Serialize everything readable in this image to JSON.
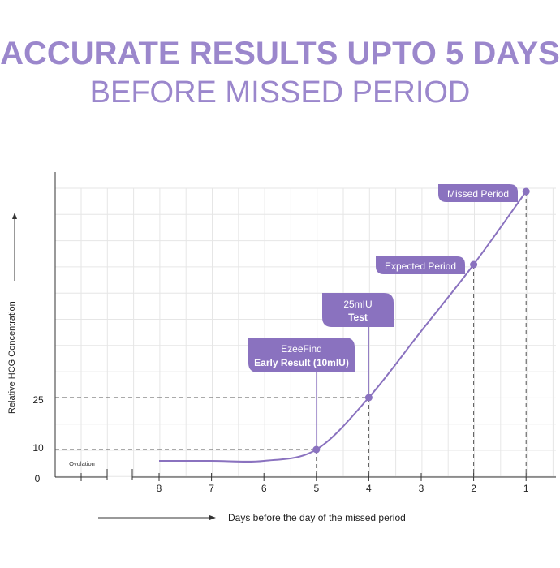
{
  "title_line1": "ACCURATE RESULTS UPTO 5 DAYS",
  "title_line2": "BEFORE MISSED PERIOD",
  "colors": {
    "accent": "#9b87cc",
    "curve": "#8a72bf",
    "label_bg": "#8a72bf",
    "grid": "#e6e6e6",
    "axis": "#333333",
    "dashed": "#555555"
  },
  "chart_data": {
    "type": "line",
    "title": "ACCURATE RESULTS UPTO 5 DAYS BEFORE MISSED PERIOD",
    "xlabel": "Days before the day of the missed period",
    "ylabel": "Relative HCG Concentration",
    "x_ticks": [
      "8",
      "7",
      "6",
      "5",
      "4",
      "3",
      "2",
      "1"
    ],
    "x_range": [
      8.6,
      0.8
    ],
    "x_reversed": true,
    "y_ticks": [
      "0",
      "10",
      "25"
    ],
    "ovulation_label": "Ovulation",
    "grid": true,
    "series": [
      {
        "name": "",
        "x": [
          8,
          7,
          6,
          5,
          4,
          3,
          2,
          1
        ],
        "y": [
          7,
          7,
          7,
          10,
          25,
          45,
          65,
          85
        ]
      }
    ],
    "markers": [
      {
        "x": 5,
        "y": 10,
        "label_line1": "EzeeFind",
        "label_line2": "Early Result (10mIU)"
      },
      {
        "x": 4,
        "y": 25,
        "label_line1": "25mIU",
        "label_line2": "Test"
      },
      {
        "x": 2,
        "y": 65,
        "label_line1": "Expected Period",
        "label_line2": ""
      },
      {
        "x": 1,
        "y": 85,
        "label_line1": "Missed Period",
        "label_line2": ""
      }
    ]
  }
}
